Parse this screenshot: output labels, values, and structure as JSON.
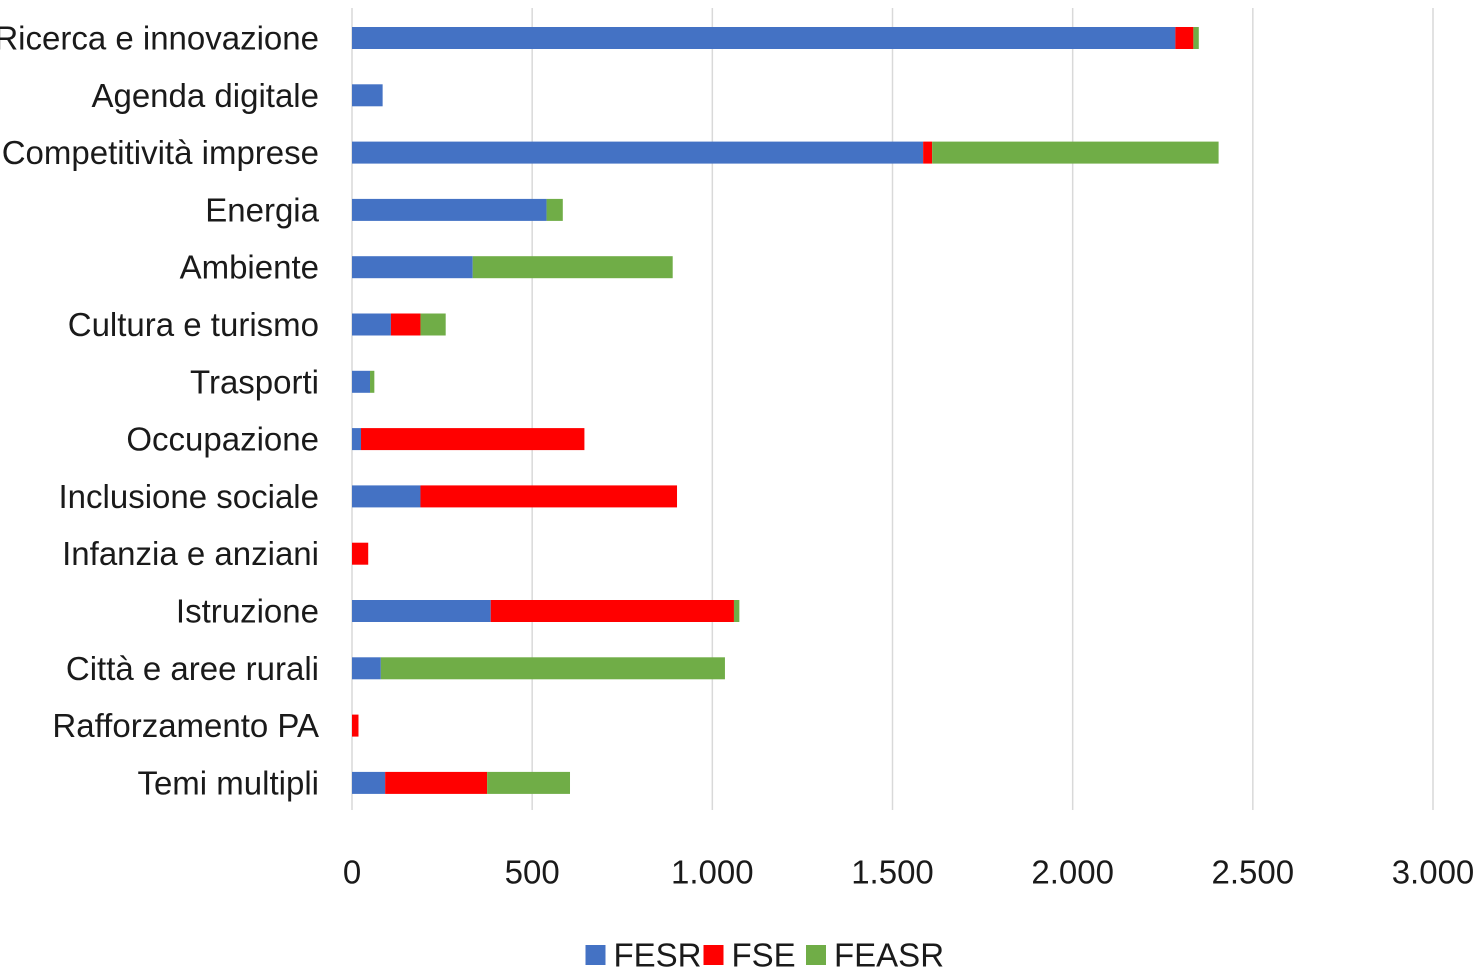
{
  "chart_data": {
    "type": "bar",
    "orientation": "horizontal",
    "stacked": true,
    "categories": [
      "Ricerca e innovazione",
      "Agenda digitale",
      "Competitività imprese",
      "Energia",
      "Ambiente",
      "Cultura e turismo",
      "Trasporti",
      "Occupazione",
      "Inclusione sociale",
      "Infanzia e anziani",
      "Istruzione",
      "Città e aree rurali",
      "Rafforzamento PA",
      "Temi multipli"
    ],
    "series": [
      {
        "name": "FESR",
        "color": "#4472C4",
        "values": [
          2285,
          85,
          1585,
          540,
          335,
          108,
          50,
          25,
          190,
          0,
          385,
          80,
          0,
          92
        ]
      },
      {
        "name": "FSE",
        "color": "#FF0000",
        "values": [
          50,
          0,
          25,
          0,
          0,
          82,
          0,
          620,
          712,
          45,
          675,
          0,
          18,
          283
        ]
      },
      {
        "name": "FEASR",
        "color": "#70AD47",
        "values": [
          15,
          0,
          795,
          45,
          555,
          70,
          12,
          0,
          0,
          0,
          15,
          955,
          0,
          230
        ]
      }
    ],
    "xlim": [
      0,
      3000
    ],
    "x_ticks": [
      0,
      500,
      1000,
      1500,
      2000,
      2500,
      3000
    ],
    "x_tick_labels": [
      "0",
      "500",
      "1.000",
      "1.500",
      "2.000",
      "2.500",
      "3.000"
    ],
    "grid": "vertical",
    "legend": "bottom",
    "title": "",
    "xlabel": "",
    "ylabel": ""
  }
}
